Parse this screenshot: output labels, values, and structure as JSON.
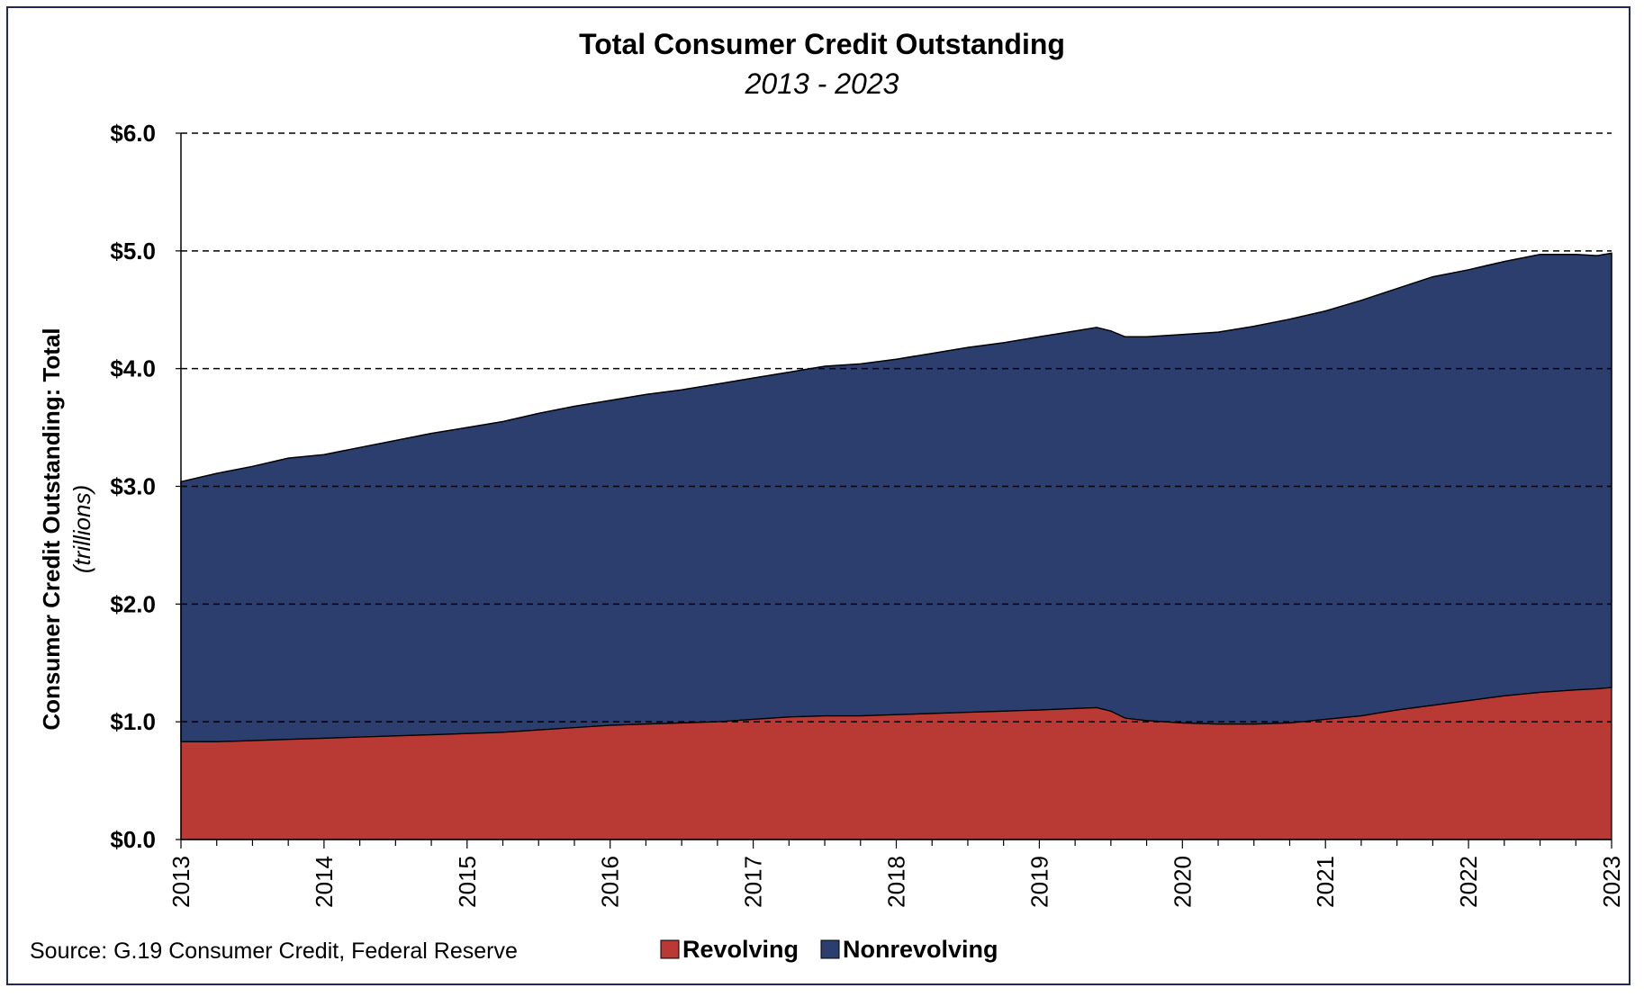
{
  "colors": {
    "revolving": "#b93a35",
    "nonrevolving": "#2c3e6e",
    "frame": "#1f2a5a"
  },
  "source": "Source: G.19 Consumer Credit, Federal Reserve",
  "chart_data": {
    "type": "area",
    "stacked": true,
    "title": "Total Consumer Credit Outstanding",
    "subtitle": "2013 - 2023",
    "ylabel": "Consumer Credit Outstanding: Total",
    "ylabel_unit": "(trillions)",
    "xlabel": "",
    "ylim": [
      0,
      6
    ],
    "y_ticks": [
      "$0.0",
      "$1.0",
      "$2.0",
      "$3.0",
      "$4.0",
      "$5.0",
      "$6.0"
    ],
    "y_tick_values": [
      0,
      1,
      2,
      3,
      4,
      5,
      6
    ],
    "xlim": [
      2013,
      2023
    ],
    "x_ticks": [
      "2013",
      "2014",
      "2015",
      "2016",
      "2017",
      "2018",
      "2019",
      "2020",
      "2021",
      "2022",
      "2023"
    ],
    "x_tick_values": [
      2013,
      2014,
      2015,
      2016,
      2017,
      2018,
      2019,
      2020,
      2021,
      2022,
      2023
    ],
    "grid": true,
    "legend": "bottom-center",
    "x": [
      2013.0,
      2013.25,
      2013.5,
      2013.75,
      2014.0,
      2014.25,
      2014.5,
      2014.75,
      2015.0,
      2015.25,
      2015.5,
      2015.75,
      2016.0,
      2016.25,
      2016.5,
      2016.75,
      2017.0,
      2017.25,
      2017.5,
      2017.75,
      2018.0,
      2018.25,
      2018.5,
      2018.75,
      2019.0,
      2019.2,
      2019.4,
      2019.5,
      2019.6,
      2019.75,
      2020.0,
      2020.25,
      2020.5,
      2020.75,
      2021.0,
      2021.25,
      2021.5,
      2021.75,
      2022.0,
      2022.25,
      2022.5,
      2022.75,
      2022.9,
      2023.0
    ],
    "series": [
      {
        "name": "Revolving",
        "values": [
          0.83,
          0.83,
          0.84,
          0.85,
          0.86,
          0.87,
          0.88,
          0.89,
          0.9,
          0.91,
          0.93,
          0.95,
          0.97,
          0.98,
          0.99,
          1.0,
          1.02,
          1.04,
          1.05,
          1.05,
          1.06,
          1.07,
          1.08,
          1.09,
          1.1,
          1.11,
          1.12,
          1.09,
          1.03,
          1.01,
          0.99,
          0.98,
          0.98,
          0.99,
          1.02,
          1.05,
          1.1,
          1.14,
          1.18,
          1.22,
          1.25,
          1.27,
          1.28,
          1.29
        ]
      },
      {
        "name": "Nonrevolving",
        "values": [
          2.21,
          2.28,
          2.33,
          2.39,
          2.41,
          2.46,
          2.51,
          2.56,
          2.6,
          2.64,
          2.69,
          2.73,
          2.76,
          2.8,
          2.83,
          2.87,
          2.9,
          2.93,
          2.97,
          2.99,
          3.02,
          3.06,
          3.1,
          3.13,
          3.17,
          3.2,
          3.23,
          3.23,
          3.24,
          3.26,
          3.3,
          3.33,
          3.38,
          3.43,
          3.47,
          3.53,
          3.58,
          3.64,
          3.66,
          3.69,
          3.72,
          3.7,
          3.68,
          3.69
        ]
      }
    ]
  }
}
